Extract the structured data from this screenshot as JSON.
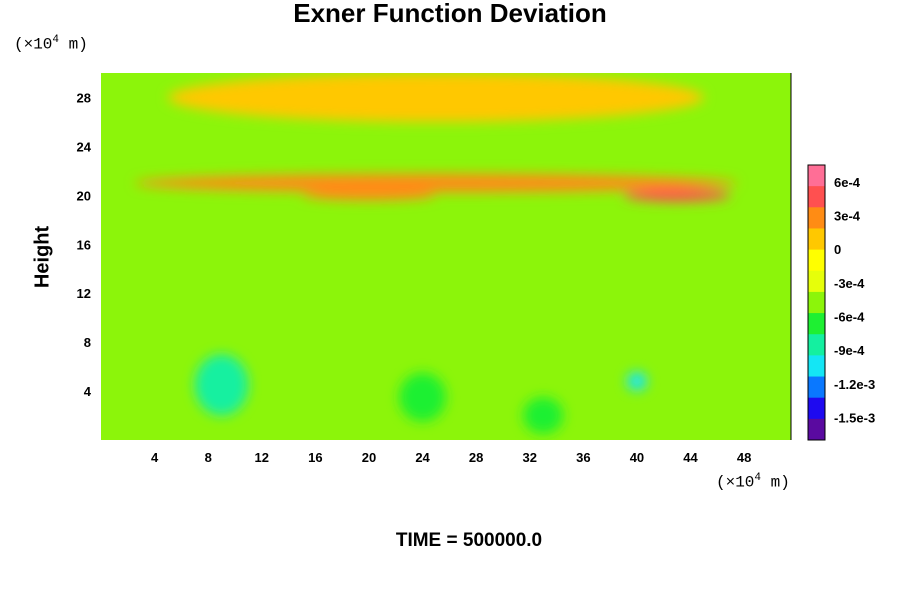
{
  "chart_data": {
    "type": "heatmap",
    "title": "Exner Function Deviation",
    "xlabel": "",
    "ylabel": "Height",
    "x_unit": {
      "prefix": "(×10",
      "exp": "4",
      "suffix": " m)"
    },
    "y_unit": {
      "prefix": "(×10",
      "exp": "4",
      "suffix": " m)"
    },
    "xlim": [
      0,
      51.5
    ],
    "ylim": [
      0,
      30
    ],
    "x_ticks": [
      "4",
      "8",
      "12",
      "16",
      "20",
      "24",
      "28",
      "32",
      "36",
      "40",
      "44",
      "48"
    ],
    "y_ticks": [
      "4",
      "8",
      "12",
      "16",
      "20",
      "24",
      "28"
    ],
    "colorbar": {
      "range": [
        -0.0017,
        0.00075
      ],
      "tick_labels": [
        "6e-4",
        "3e-4",
        "0",
        "-3e-4",
        "-6e-4",
        "-9e-4",
        "-1.2e-3",
        "-1.5e-3"
      ],
      "tick_values": [
        0.0006,
        0.0003,
        0,
        -0.0003,
        -0.0006,
        -0.0009,
        -0.0012,
        -0.0015
      ]
    },
    "field_features": [
      {
        "x": 25,
        "y": 28,
        "value": 0.0001,
        "w": 40,
        "h": 4
      },
      {
        "x": 25,
        "y": 21,
        "value": 0.0002,
        "w": 45,
        "h": 1.5
      },
      {
        "x": 43,
        "y": 20,
        "value": 0.0004,
        "w": 8,
        "h": 1
      },
      {
        "x": 20,
        "y": 20,
        "value": 0.0003,
        "w": 10,
        "h": 0.8
      },
      {
        "x": 9,
        "y": 4.5,
        "value": -0.00085,
        "w": 4,
        "h": 5
      },
      {
        "x": 24,
        "y": 3.5,
        "value": -0.00075,
        "w": 3.5,
        "h": 4
      },
      {
        "x": 33,
        "y": 2,
        "value": -0.0006,
        "w": 3,
        "h": 3
      },
      {
        "x": 40,
        "y": 4.8,
        "value": -0.00095,
        "w": 1.5,
        "h": 1.5
      }
    ]
  },
  "time_label": "TIME = 500000.0",
  "colors": {
    "scale": [
      "#5a0aa0",
      "#1e0af0",
      "#0a78ff",
      "#14e6f5",
      "#14f0a0",
      "#1ef032",
      "#8cf50a",
      "#e6ff0a",
      "#ffff00",
      "#ffc800",
      "#ff8c14",
      "#ff5050",
      "#ff6e96"
    ]
  }
}
